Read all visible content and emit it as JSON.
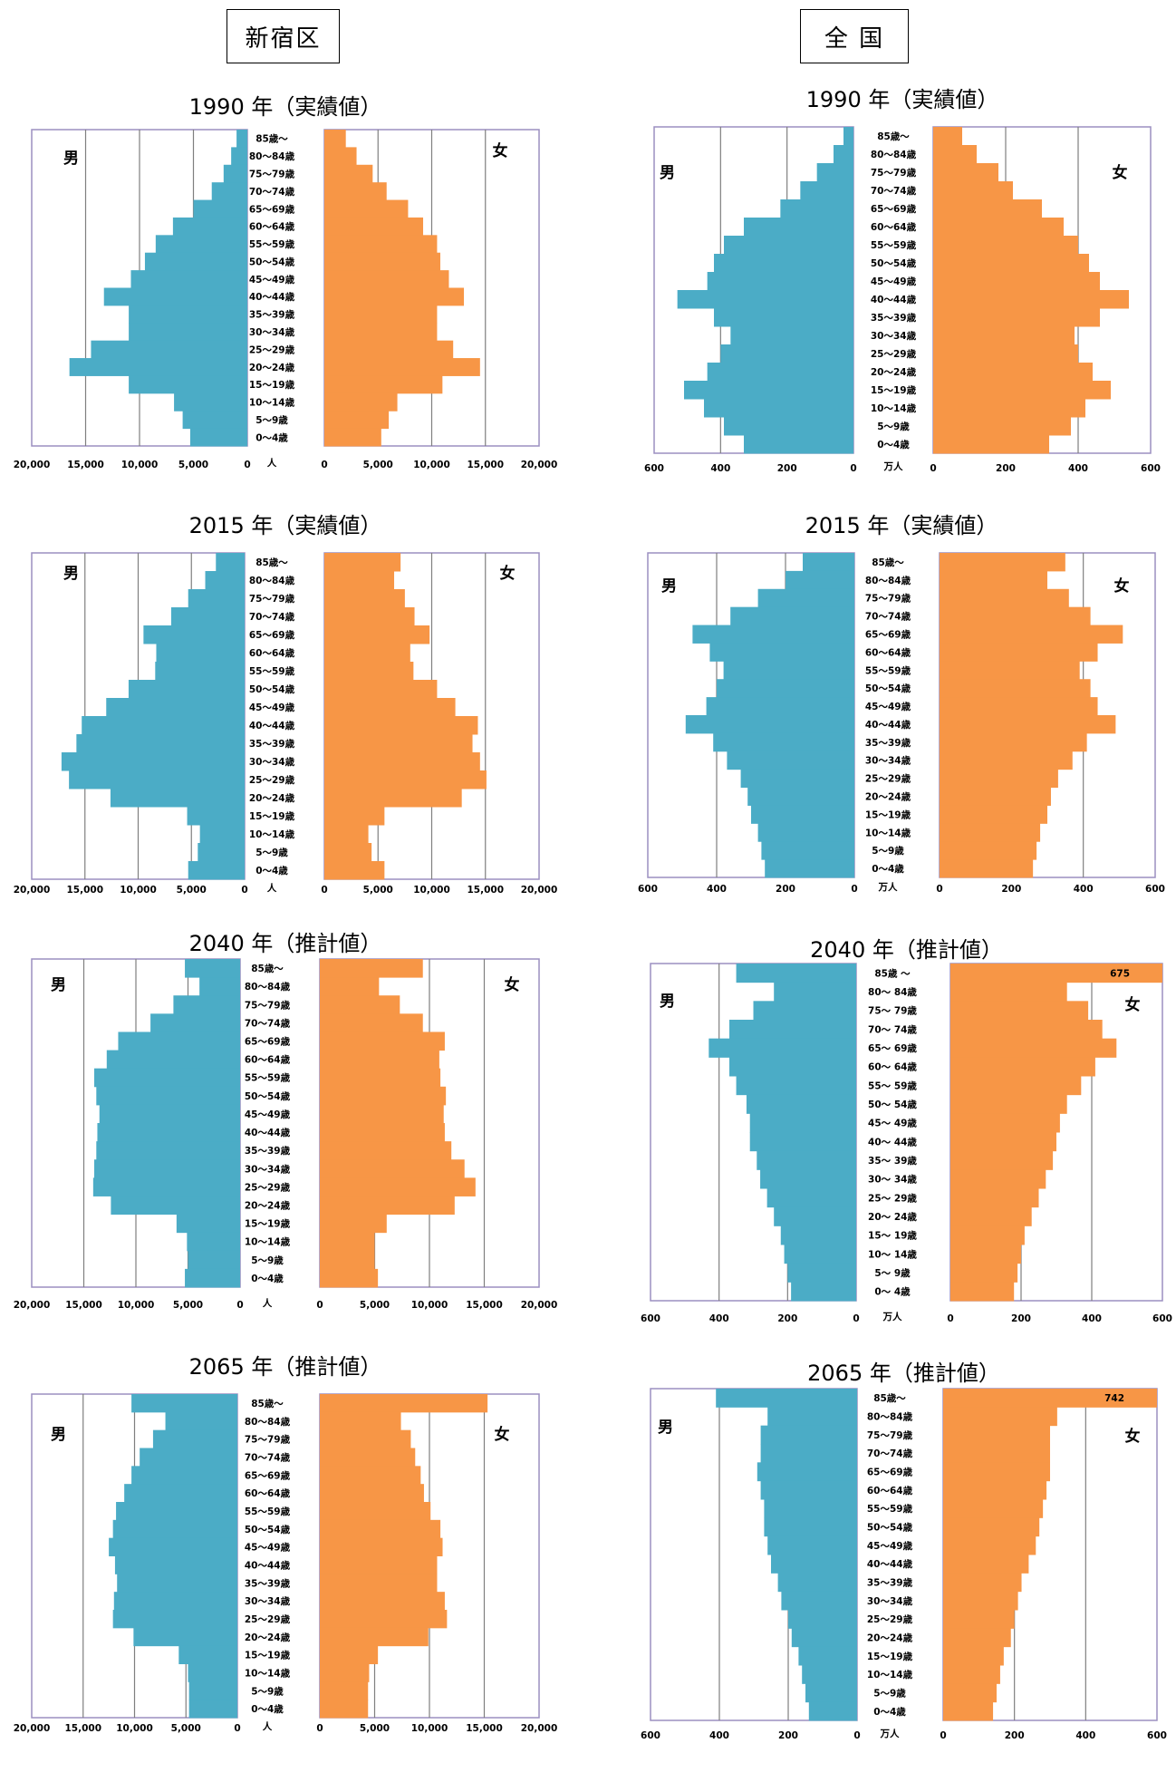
{
  "headers": {
    "left": "新宿区",
    "right": "全 国"
  },
  "age_labels_main": [
    "85歳～",
    "80～84歳",
    "75～79歳",
    "70～74歳",
    "65～69歳",
    "60～64歳",
    "55～59歳",
    "50～54歳",
    "45～49歳",
    "40～44歳",
    "35～39歳",
    "30～34歳",
    "25～29歳",
    "20～24歳",
    "15～19歳",
    "10～14歳",
    "5～9歳",
    "0～4歳"
  ],
  "age_labels_alt": [
    "85歳 ～",
    "80～ 84歳",
    "75～ 79歳",
    "70～ 74歳",
    "65～ 69歳",
    "60～ 64歳",
    "55～ 59歳",
    "50～ 54歳",
    "45～ 49歳",
    "40～ 44歳",
    "35～ 39歳",
    "30～ 34歳",
    "25～ 29歳",
    "20～ 24歳",
    "15～ 19歳",
    "10～ 14歳",
    "5～ 9歳",
    "0～ 4歳"
  ],
  "male_label": "男",
  "female_label": "女",
  "colors": {
    "male": "#4bacc6",
    "female": "#f79646",
    "grid": "#7f7f7f",
    "frame": "#9b8fc1"
  },
  "chart_data": [
    {
      "type": "bar",
      "region": "新宿区",
      "title": "1990 年（実績値）",
      "unit_label": "人",
      "xlim": [
        0,
        20000
      ],
      "xticks_left": [
        "20,000",
        "15,000",
        "10,000",
        "5,000",
        "0"
      ],
      "xticks_right": [
        "0",
        "5,000",
        "10,000",
        "15,000",
        "20,000"
      ],
      "male": [
        1000,
        1500,
        2200,
        3300,
        5000,
        6900,
        8500,
        9500,
        10800,
        13300,
        11000,
        11000,
        14500,
        16500,
        11000,
        6800,
        6000,
        5300
      ],
      "female": [
        2000,
        3000,
        4500,
        5800,
        7800,
        9200,
        10500,
        10800,
        11600,
        13000,
        10500,
        10500,
        12000,
        14500,
        11000,
        6800,
        6000,
        5300
      ]
    },
    {
      "type": "bar",
      "region": "全国",
      "title": "1990 年（実績値）",
      "unit_label": "万人",
      "xlim": [
        0,
        600
      ],
      "xticks_left": [
        "600",
        "400",
        "200",
        "0"
      ],
      "xticks_right": [
        "0",
        "200",
        "400",
        "600"
      ],
      "male": [
        30,
        60,
        110,
        160,
        220,
        330,
        390,
        420,
        440,
        530,
        420,
        370,
        400,
        440,
        510,
        450,
        390,
        330
      ],
      "female": [
        80,
        120,
        180,
        220,
        300,
        360,
        400,
        430,
        460,
        540,
        460,
        390,
        400,
        440,
        490,
        420,
        380,
        320
      ]
    },
    {
      "type": "bar",
      "region": "新宿区",
      "title": "2015 年（実績値）",
      "unit_label": "人",
      "xlim": [
        0,
        20000
      ],
      "xticks_left": [
        "20,000",
        "15,000",
        "10,000",
        "5,000",
        "0"
      ],
      "xticks_right": [
        "0",
        "5,000",
        "10,000",
        "15,000",
        "20,000"
      ],
      "male": [
        2700,
        3700,
        5300,
        6900,
        9500,
        8300,
        8400,
        10900,
        13000,
        15300,
        15800,
        17200,
        16500,
        12600,
        5400,
        4200,
        4400,
        5300
      ],
      "female": [
        7100,
        6500,
        7500,
        8400,
        9800,
        8000,
        8300,
        10500,
        12200,
        14300,
        13800,
        14500,
        15100,
        12800,
        5600,
        4100,
        4400,
        5600
      ]
    },
    {
      "type": "bar",
      "region": "全国",
      "title": "2015 年（実績値）",
      "unit_label": "万人",
      "xlim": [
        0,
        600
      ],
      "xticks_left": [
        "600",
        "400",
        "200",
        "0"
      ],
      "xticks_right": [
        "0",
        "200",
        "400",
        "600"
      ],
      "male": [
        150,
        200,
        280,
        360,
        470,
        420,
        380,
        400,
        430,
        490,
        410,
        370,
        330,
        310,
        300,
        280,
        270,
        260
      ],
      "female": [
        350,
        300,
        360,
        420,
        510,
        440,
        390,
        420,
        440,
        490,
        410,
        370,
        330,
        310,
        300,
        280,
        270,
        260
      ]
    },
    {
      "type": "bar",
      "region": "新宿区",
      "title": "2040 年（推計値）",
      "unit_label": "人",
      "xlim": [
        0,
        20000
      ],
      "xticks_left": [
        "20,000",
        "15,000",
        "10,000",
        "5,000",
        "0"
      ],
      "xticks_right": [
        "0",
        "5,000",
        "10,000",
        "15,000",
        "20,000"
      ],
      "male": [
        5300,
        3900,
        6400,
        8600,
        11700,
        12800,
        14000,
        13800,
        13500,
        13700,
        13800,
        14000,
        14100,
        12400,
        6100,
        5100,
        5000,
        5300
      ],
      "female": [
        9400,
        5400,
        7300,
        9400,
        11400,
        10900,
        11000,
        11500,
        11300,
        11400,
        12000,
        13200,
        14200,
        12300,
        6100,
        5000,
        5000,
        5300
      ],
      "male_extra": [
        5300
      ]
    },
    {
      "type": "bar",
      "region": "全国",
      "title": "2040 年（推計値）",
      "unit_label": "万人",
      "xlim": [
        0,
        600
      ],
      "xticks_left": [
        "600",
        "400",
        "200",
        "0"
      ],
      "xticks_right": [
        "0",
        "200",
        "400",
        "600"
      ],
      "male": [
        350,
        240,
        300,
        370,
        430,
        370,
        350,
        320,
        310,
        310,
        290,
        280,
        260,
        240,
        220,
        210,
        200,
        190
      ],
      "female": [
        675,
        330,
        390,
        430,
        470,
        410,
        370,
        330,
        310,
        300,
        290,
        270,
        250,
        230,
        210,
        200,
        190,
        180
      ],
      "data_labels": {
        "female_85": "675"
      }
    },
    {
      "type": "bar",
      "region": "新宿区",
      "title": "2065 年（推計値）",
      "unit_label": "人",
      "xlim": [
        0,
        20000
      ],
      "xticks_left": [
        "20,000",
        "15,000",
        "10,000",
        "5,000",
        "0"
      ],
      "xticks_right": [
        "0",
        "5,000",
        "10,000",
        "15,000",
        "20,000"
      ],
      "male": [
        10300,
        7000,
        8200,
        9500,
        10300,
        11000,
        11800,
        12100,
        12500,
        11900,
        11700,
        12000,
        12100,
        10100,
        5700,
        4800,
        4700,
        4700
      ],
      "female": [
        15300,
        7400,
        8300,
        8700,
        9200,
        9500,
        10100,
        11000,
        11200,
        10700,
        10700,
        11400,
        11600,
        9900,
        5300,
        4500,
        4400,
        4400
      ],
      "male_extra": [
        4700
      ]
    },
    {
      "type": "bar",
      "region": "全国",
      "title": "2065 年（推計値）",
      "unit_label": "万人",
      "xlim": [
        0,
        600
      ],
      "xticks_left": [
        "600",
        "400",
        "200",
        "0"
      ],
      "xticks_right": [
        "0",
        "200",
        "400",
        "600"
      ],
      "male": [
        410,
        260,
        280,
        280,
        290,
        280,
        270,
        270,
        260,
        250,
        230,
        220,
        200,
        190,
        170,
        160,
        150,
        140
      ],
      "female": [
        742,
        320,
        300,
        300,
        300,
        290,
        280,
        270,
        260,
        240,
        220,
        210,
        200,
        190,
        170,
        160,
        150,
        140
      ],
      "data_labels": {
        "female_85": "742"
      }
    }
  ]
}
